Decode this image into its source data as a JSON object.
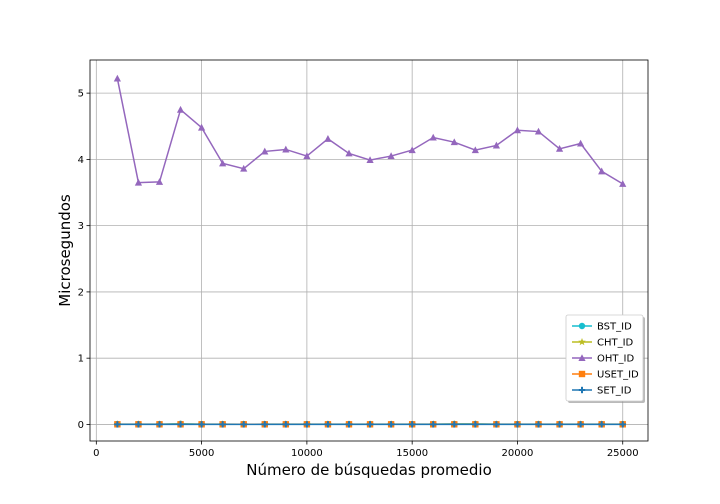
{
  "chart_data": {
    "type": "line",
    "title": "",
    "xlabel": "Número de búsquedas promedio",
    "ylabel": "Microsegundos",
    "xlim": [
      -300,
      26200
    ],
    "ylim": [
      -0.25,
      5.5
    ],
    "xticks": [
      0,
      5000,
      10000,
      15000,
      20000,
      25000
    ],
    "yticks": [
      0,
      1,
      2,
      3,
      4,
      5
    ],
    "grid": true,
    "legend_position": "lower-right",
    "x": [
      1000,
      2000,
      3000,
      4000,
      5000,
      6000,
      7000,
      8000,
      9000,
      10000,
      11000,
      12000,
      13000,
      14000,
      15000,
      16000,
      17000,
      18000,
      19000,
      20000,
      21000,
      22000,
      23000,
      24000,
      25000
    ],
    "series": [
      {
        "name": "BST_ID",
        "color": "#17becf",
        "marker": "circle",
        "values": [
          0.005,
          0.004,
          0.004,
          0.01,
          0.004,
          0.004,
          0.003,
          0.004,
          0.004,
          0.004,
          0.004,
          0.004,
          0.004,
          0.004,
          0.004,
          0.004,
          0.008,
          0.008,
          0.004,
          0.004,
          0.004,
          0.004,
          0.004,
          0.004,
          0.004
        ]
      },
      {
        "name": "CHT_ID",
        "color": "#bcbd22",
        "marker": "star",
        "values": [
          0.003,
          0.003,
          0.003,
          0.004,
          0.003,
          0.003,
          0.003,
          0.003,
          0.003,
          0.003,
          0.003,
          0.003,
          0.003,
          0.003,
          0.003,
          0.003,
          0.004,
          0.004,
          0.003,
          0.003,
          0.003,
          0.003,
          0.003,
          0.003,
          0.003
        ]
      },
      {
        "name": "OHT_ID",
        "color": "#9467bd",
        "marker": "triangle",
        "values": [
          5.22,
          3.65,
          3.66,
          4.75,
          4.48,
          3.94,
          3.86,
          4.12,
          4.15,
          4.05,
          4.31,
          4.09,
          3.99,
          4.05,
          4.14,
          4.33,
          4.26,
          4.14,
          4.21,
          4.44,
          4.42,
          4.16,
          4.24,
          3.82,
          3.63
        ]
      },
      {
        "name": "USET_ID",
        "color": "#ff7f0e",
        "marker": "square",
        "values": [
          0.002,
          0.002,
          0.002,
          0.002,
          0.002,
          0.002,
          0.002,
          0.002,
          0.002,
          0.002,
          0.002,
          0.002,
          0.002,
          0.002,
          0.002,
          0.002,
          0.002,
          0.002,
          0.002,
          0.002,
          0.002,
          0.002,
          0.002,
          0.002,
          0.002
        ]
      },
      {
        "name": "SET_ID",
        "color": "#1f77b4",
        "marker": "plus",
        "values": [
          0.001,
          0.001,
          0.001,
          0.001,
          0.001,
          0.001,
          0.001,
          0.001,
          0.001,
          0.001,
          0.001,
          0.001,
          0.001,
          0.001,
          0.001,
          0.001,
          0.001,
          0.001,
          0.001,
          0.001,
          0.001,
          0.001,
          0.001,
          0.001,
          0.001
        ]
      }
    ]
  }
}
